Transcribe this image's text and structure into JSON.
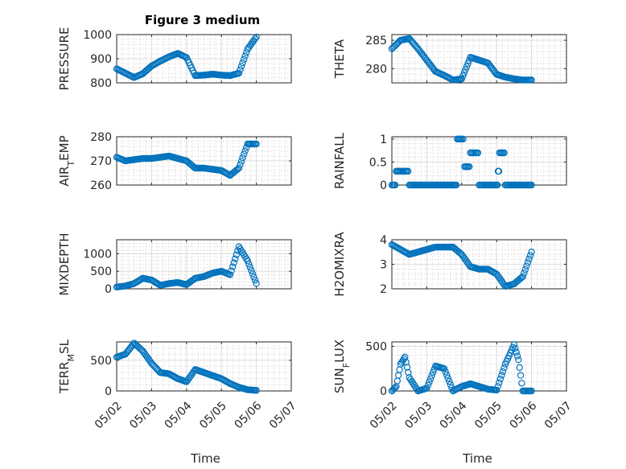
{
  "figure": {
    "title": "Figure 3 medium",
    "x_axis_label": "Time",
    "x_tick_labels": [
      "05/02",
      "05/03",
      "05/04",
      "05/05",
      "05/06",
      "05/07"
    ]
  },
  "colors": {
    "marker": "#0072bd",
    "axis": "#262626",
    "grid": "#dcdcdc",
    "background": "#ffffff"
  },
  "chart_data": [
    {
      "id": "pressure",
      "type": "scatter",
      "title": "Figure 3 medium",
      "xlabel": "",
      "ylabel": "PRESSURE",
      "xlim": [
        "05/02",
        "05/07"
      ],
      "ylim": [
        800,
        1000
      ],
      "yticks": [
        800,
        900,
        1000
      ],
      "ytick_labels": [
        "800",
        "900",
        "1000"
      ],
      "grid": true,
      "marker": "circle",
      "x": [
        "05/02",
        "05/02 06:00",
        "05/02 12:00",
        "05/02 18:00",
        "05/03",
        "05/03 06:00",
        "05/03 12:00",
        "05/03 18:00",
        "05/04",
        "05/04 06:00",
        "05/04 12:00",
        "05/04 18:00",
        "05/05",
        "05/05 06:00",
        "05/05 12:00",
        "05/05 18:00",
        "05/06"
      ],
      "y": [
        858,
        840,
        822,
        838,
        870,
        890,
        908,
        922,
        905,
        830,
        832,
        836,
        832,
        830,
        840,
        940,
        990
      ]
    },
    {
      "id": "theta",
      "type": "scatter",
      "xlabel": "",
      "ylabel": "THETA",
      "xlim": [
        "05/02",
        "05/07"
      ],
      "ylim": [
        277.5,
        286
      ],
      "yticks": [
        280,
        285
      ],
      "ytick_labels": [
        "280",
        "285"
      ],
      "grid": true,
      "marker": "circle",
      "x": [
        "05/02",
        "05/02 06:00",
        "05/02 12:00",
        "05/02 18:00",
        "05/03",
        "05/03 06:00",
        "05/03 12:00",
        "05/03 18:00",
        "05/04",
        "05/04 06:00",
        "05/04 12:00",
        "05/04 18:00",
        "05/05",
        "05/05 06:00",
        "05/05 12:00",
        "05/05 18:00",
        "05/06"
      ],
      "y": [
        283.5,
        285,
        285.3,
        283.5,
        281.5,
        279.5,
        278.8,
        278,
        278.2,
        282,
        281.5,
        281,
        279,
        278.5,
        278.2,
        278,
        278
      ]
    },
    {
      "id": "air_temp",
      "type": "scatter",
      "xlabel": "",
      "ylabel": "AIR_TEMP",
      "xlim": [
        "05/02",
        "05/07"
      ],
      "ylim": [
        260,
        280
      ],
      "yticks": [
        260,
        270,
        280
      ],
      "ytick_labels": [
        "260",
        "270",
        "280"
      ],
      "grid": true,
      "marker": "circle",
      "x": [
        "05/02",
        "05/02 06:00",
        "05/02 12:00",
        "05/02 18:00",
        "05/03",
        "05/03 06:00",
        "05/03 12:00",
        "05/03 18:00",
        "05/04",
        "05/04 06:00",
        "05/04 12:00",
        "05/04 18:00",
        "05/05",
        "05/05 06:00",
        "05/05 12:00",
        "05/05 18:00",
        "05/06"
      ],
      "y": [
        271.5,
        270,
        270.5,
        271,
        271,
        271.5,
        272,
        271,
        270,
        267,
        267,
        266.5,
        266,
        264,
        267,
        277,
        277
      ]
    },
    {
      "id": "rainfall",
      "type": "scatter",
      "xlabel": "",
      "ylabel": "RAINFALL",
      "xlim": [
        "05/02",
        "05/07"
      ],
      "ylim": [
        0,
        1.05
      ],
      "yticks": [
        0,
        0.5,
        1
      ],
      "ytick_labels": [
        "0",
        "0.5",
        "1"
      ],
      "grid": true,
      "marker": "circle",
      "x": [
        "05/02",
        "05/02 03:00",
        "05/02 06:00",
        "05/02 12:00",
        "05/02 18:00",
        "05/03",
        "05/03 06:00",
        "05/03 12:00",
        "05/03 18:00",
        "05/03 21:00",
        "05/04",
        "05/04 02:00",
        "05/04 06:00",
        "05/04 12:00",
        "05/04 18:00",
        "05/05",
        "05/05 01:00",
        "05/05 02:00",
        "05/05 06:00",
        "05/05 12:00",
        "05/05 18:00",
        "05/06"
      ],
      "y": [
        0,
        0.3,
        0.3,
        0,
        0,
        0,
        0,
        0,
        0,
        1,
        1,
        0.4,
        0.7,
        0,
        0,
        0,
        0.3,
        0.7,
        0,
        0,
        0,
        0
      ]
    },
    {
      "id": "mixdepth",
      "type": "scatter",
      "xlabel": "",
      "ylabel": "MIXDEPTH",
      "xlim": [
        "05/02",
        "05/07"
      ],
      "ylim": [
        0,
        1400
      ],
      "yticks": [
        0,
        500,
        1000
      ],
      "ytick_labels": [
        "0",
        "500",
        "1000"
      ],
      "grid": true,
      "marker": "circle",
      "x": [
        "05/02",
        "05/02 06:00",
        "05/02 12:00",
        "05/02 18:00",
        "05/03",
        "05/03 06:00",
        "05/03 12:00",
        "05/03 18:00",
        "05/04",
        "05/04 06:00",
        "05/04 12:00",
        "05/04 18:00",
        "05/05",
        "05/05 06:00",
        "05/05 12:00",
        "05/05 18:00",
        "05/06"
      ],
      "y": [
        50,
        80,
        150,
        300,
        250,
        100,
        150,
        180,
        120,
        300,
        350,
        450,
        500,
        400,
        1200,
        800,
        150
      ]
    },
    {
      "id": "h2omixra",
      "type": "scatter",
      "xlabel": "",
      "ylabel": "H2OMIXRA",
      "xlim": [
        "05/02",
        "05/07"
      ],
      "ylim": [
        2,
        4
      ],
      "yticks": [
        2,
        3,
        4
      ],
      "ytick_labels": [
        "2",
        "3",
        "4"
      ],
      "grid": true,
      "marker": "circle",
      "x": [
        "05/02",
        "05/02 06:00",
        "05/02 12:00",
        "05/02 18:00",
        "05/03",
        "05/03 06:00",
        "05/03 12:00",
        "05/03 18:00",
        "05/04",
        "05/04 06:00",
        "05/04 12:00",
        "05/04 18:00",
        "05/05",
        "05/05 06:00",
        "05/05 12:00",
        "05/05 18:00",
        "05/06"
      ],
      "y": [
        3.8,
        3.6,
        3.4,
        3.5,
        3.6,
        3.7,
        3.7,
        3.7,
        3.4,
        2.9,
        2.8,
        2.8,
        2.6,
        2.1,
        2.2,
        2.5,
        3.5
      ]
    },
    {
      "id": "terr_msl",
      "type": "scatter",
      "xlabel": "",
      "ylabel": "TERR_MSL",
      "xlim": [
        "05/02",
        "05/07"
      ],
      "ylim": [
        0,
        800
      ],
      "yticks": [
        0,
        500
      ],
      "ytick_labels": [
        "0",
        "500"
      ],
      "grid": true,
      "marker": "circle",
      "x": [
        "05/02",
        "05/02 06:00",
        "05/02 12:00",
        "05/02 18:00",
        "05/03",
        "05/03 06:00",
        "05/03 12:00",
        "05/03 18:00",
        "05/04",
        "05/04 06:00",
        "05/04 12:00",
        "05/04 18:00",
        "05/05",
        "05/05 06:00",
        "05/05 12:00",
        "05/05 18:00",
        "05/06"
      ],
      "y": [
        550,
        600,
        780,
        650,
        450,
        300,
        280,
        200,
        150,
        350,
        300,
        250,
        200,
        120,
        60,
        20,
        10
      ]
    },
    {
      "id": "sun_flux",
      "type": "scatter",
      "xlabel": "",
      "ylabel": "SUN_FLUX",
      "xlim": [
        "05/02",
        "05/07"
      ],
      "ylim": [
        0,
        550
      ],
      "yticks": [
        0,
        500
      ],
      "ytick_labels": [
        "0",
        "500"
      ],
      "grid": true,
      "marker": "circle",
      "x": [
        "05/02",
        "05/02 03:00",
        "05/02 06:00",
        "05/02 09:00",
        "05/02 12:00",
        "05/02 18:00",
        "05/03",
        "05/03 06:00",
        "05/03 12:00",
        "05/03 18:00",
        "05/04",
        "05/04 06:00",
        "05/04 12:00",
        "05/04 18:00",
        "05/05",
        "05/05 06:00",
        "05/05 12:00",
        "05/05 15:00",
        "05/05 18:00",
        "05/06"
      ],
      "y": [
        0,
        50,
        300,
        380,
        150,
        0,
        30,
        280,
        250,
        0,
        50,
        80,
        50,
        20,
        10,
        300,
        520,
        350,
        0,
        0
      ]
    }
  ]
}
